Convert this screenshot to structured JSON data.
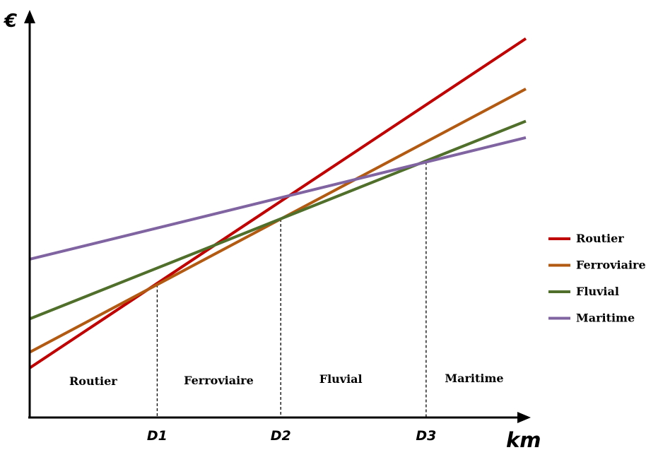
{
  "chart_data": {
    "type": "line",
    "ylabel": "€",
    "xlabel": "km",
    "xlim": [
      0,
      100
    ],
    "ylim": [
      0,
      100
    ],
    "x_ticks": [
      {
        "label": "D1",
        "value": 25.7
      },
      {
        "label": "D2",
        "value": 50.6
      },
      {
        "label": "D3",
        "value": 79.9
      }
    ],
    "series": [
      {
        "name": "Routier",
        "color": "#c00000",
        "x": [
          0,
          100
        ],
        "y": [
          12.3,
          94.1
        ]
      },
      {
        "name": "Ferroviaire",
        "color": "#b35a12",
        "x": [
          0,
          100
        ],
        "y": [
          16.2,
          81.6
        ]
      },
      {
        "name": "Fluvial",
        "color": "#4f6f2a",
        "x": [
          0,
          100
        ],
        "y": [
          24.5,
          73.6
        ]
      },
      {
        "name": "Maritime",
        "color": "#8064a2",
        "x": [
          0,
          100
        ],
        "y": [
          39.3,
          69.5
        ]
      }
    ],
    "regions": [
      {
        "label": "Routier",
        "x_center": 12.8
      },
      {
        "label": "Ferroviaire",
        "x_center": 38.1
      },
      {
        "label": "Fluvial",
        "x_center": 62.7
      },
      {
        "label": "Maritime",
        "x_center": 89.6
      }
    ],
    "legend": {
      "position": "right",
      "entries": [
        "Routier",
        "Ferroviaire",
        "Fluvial",
        "Maritime"
      ]
    },
    "grid": false
  }
}
